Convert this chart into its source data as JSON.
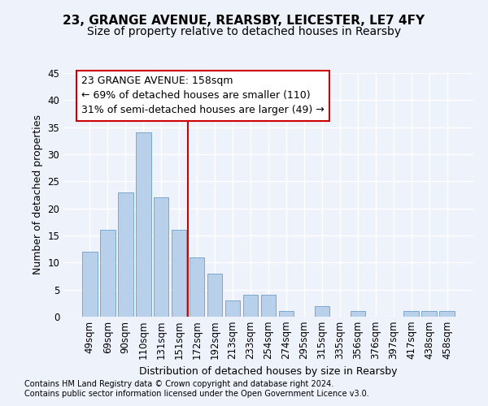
{
  "title1": "23, GRANGE AVENUE, REARSBY, LEICESTER, LE7 4FY",
  "title2": "Size of property relative to detached houses in Rearsby",
  "xlabel": "Distribution of detached houses by size in Rearsby",
  "ylabel": "Number of detached properties",
  "categories": [
    "49sqm",
    "69sqm",
    "90sqm",
    "110sqm",
    "131sqm",
    "151sqm",
    "172sqm",
    "192sqm",
    "213sqm",
    "233sqm",
    "254sqm",
    "274sqm",
    "295sqm",
    "315sqm",
    "335sqm",
    "356sqm",
    "376sqm",
    "397sqm",
    "417sqm",
    "438sqm",
    "458sqm"
  ],
  "values": [
    12,
    16,
    23,
    34,
    22,
    16,
    11,
    8,
    3,
    4,
    4,
    1,
    0,
    2,
    0,
    1,
    0,
    0,
    1,
    1,
    1
  ],
  "bar_color": "#b8d0ea",
  "bar_edge_color": "#7aa8d0",
  "ylim": [
    0,
    45
  ],
  "yticks": [
    0,
    5,
    10,
    15,
    20,
    25,
    30,
    35,
    40,
    45
  ],
  "property_line_x": 5.5,
  "annotation_line1": "23 GRANGE AVENUE: 158sqm",
  "annotation_line2": "← 69% of detached houses are smaller (110)",
  "annotation_line3": "31% of semi-detached houses are larger (49) →",
  "footer1": "Contains HM Land Registry data © Crown copyright and database right 2024.",
  "footer2": "Contains public sector information licensed under the Open Government Licence v3.0.",
  "background_color": "#eef2fb",
  "grid_color": "#ffffff",
  "title1_fontsize": 11,
  "title2_fontsize": 10,
  "xlabel_fontsize": 9,
  "ylabel_fontsize": 9,
  "tick_fontsize": 8.5,
  "annotation_fontsize": 9,
  "footer_fontsize": 7
}
